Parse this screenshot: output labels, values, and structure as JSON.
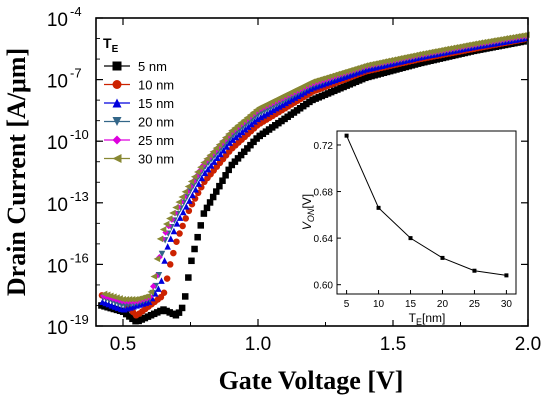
{
  "chart_data": [
    {
      "type": "scatter",
      "xlabel": "Gate Voltage [V]",
      "ylabel": "Drain Current [A/μm]",
      "xlim": [
        0.4,
        2.0
      ],
      "ylim_exponent": [
        -19,
        -4
      ],
      "yscale": "log",
      "x_ticks": [
        "0.5",
        "1.0",
        "1.5",
        "2.0"
      ],
      "y_tick_mantissa": "10",
      "y_tick_exponents": [
        "-4",
        "-7",
        "-10",
        "-13",
        "-16",
        "-19"
      ],
      "legend_title": "T",
      "legend_title_subscript": "E",
      "legend_position": "top-left",
      "series": [
        {
          "name": "5 nm",
          "color": "#000000",
          "marker": "square",
          "x": [
            0.42,
            0.5,
            0.55,
            0.6,
            0.65,
            0.7,
            0.725,
            0.75,
            0.8,
            0.9,
            1.0,
            1.2,
            1.4,
            1.6,
            1.8,
            2.0
          ],
          "y": [
            -18.0,
            -18.3,
            -18.8,
            -18.5,
            -18.2,
            -18.5,
            -18.0,
            -16.0,
            -13.5,
            -11.2,
            -9.8,
            -8.0,
            -6.9,
            -6.2,
            -5.6,
            -5.1
          ]
        },
        {
          "name": "10 nm",
          "color": "#cc2200",
          "marker": "circle",
          "x": [
            0.42,
            0.5,
            0.55,
            0.6,
            0.65,
            0.675,
            0.7,
            0.75,
            0.8,
            0.9,
            1.0,
            1.2,
            1.4,
            1.6,
            1.8,
            2.0
          ],
          "y": [
            -17.5,
            -17.8,
            -18.5,
            -18.0,
            -17.5,
            -16.0,
            -14.8,
            -13.2,
            -12.0,
            -10.4,
            -9.2,
            -7.6,
            -6.6,
            -6.0,
            -5.5,
            -5.0
          ]
        },
        {
          "name": "15 nm",
          "color": "#0000dd",
          "marker": "triangle-up",
          "x": [
            0.42,
            0.5,
            0.55,
            0.6,
            0.64,
            0.66,
            0.7,
            0.75,
            0.8,
            0.9,
            1.0,
            1.2,
            1.4,
            1.6,
            1.8,
            2.0
          ],
          "y": [
            -17.8,
            -18.2,
            -18.0,
            -17.8,
            -17.0,
            -15.3,
            -14.0,
            -12.8,
            -11.6,
            -10.0,
            -8.9,
            -7.4,
            -6.5,
            -5.9,
            -5.4,
            -4.95
          ]
        },
        {
          "name": "20 nm",
          "color": "#336688",
          "marker": "triangle-down",
          "x": [
            0.42,
            0.5,
            0.55,
            0.6,
            0.63,
            0.65,
            0.7,
            0.75,
            0.8,
            0.9,
            1.0,
            1.2,
            1.4,
            1.6,
            1.8,
            2.0
          ],
          "y": [
            -17.6,
            -18.0,
            -17.9,
            -17.7,
            -16.8,
            -15.0,
            -13.6,
            -12.4,
            -11.3,
            -9.8,
            -8.7,
            -7.3,
            -6.4,
            -5.85,
            -5.35,
            -4.9
          ]
        },
        {
          "name": "25 nm",
          "color": "#dd00dd",
          "marker": "diamond",
          "x": [
            0.42,
            0.5,
            0.55,
            0.6,
            0.625,
            0.645,
            0.7,
            0.75,
            0.8,
            0.9,
            1.0,
            1.2,
            1.4,
            1.6,
            1.8,
            2.0
          ],
          "y": [
            -17.5,
            -17.8,
            -17.8,
            -17.6,
            -16.5,
            -14.8,
            -13.3,
            -12.2,
            -11.1,
            -9.6,
            -8.5,
            -7.2,
            -6.35,
            -5.8,
            -5.3,
            -4.85
          ]
        },
        {
          "name": "30 nm",
          "color": "#888833",
          "marker": "triangle-left",
          "x": [
            0.42,
            0.5,
            0.55,
            0.6,
            0.62,
            0.64,
            0.7,
            0.75,
            0.8,
            0.9,
            1.0,
            1.2,
            1.4,
            1.6,
            1.8,
            2.0
          ],
          "y": [
            -17.4,
            -17.7,
            -17.7,
            -17.5,
            -16.2,
            -14.5,
            -13.1,
            -12.0,
            -11.0,
            -9.5,
            -8.4,
            -7.1,
            -6.3,
            -5.75,
            -5.25,
            -4.8
          ]
        }
      ]
    },
    {
      "type": "line",
      "xlabel": "T",
      "xlabel_subscript": "E",
      "xlabel_unit": "[nm]",
      "ylabel": "V",
      "ylabel_subscript": "ON",
      "ylabel_unit": "[V]",
      "xlim": [
        3.5,
        31.5
      ],
      "ylim": [
        0.592,
        0.732
      ],
      "x_ticks": [
        "5",
        "10",
        "15",
        "20",
        "25",
        "30"
      ],
      "y_ticks": [
        "0.60",
        "0.64",
        "0.68",
        "0.72"
      ],
      "series": [
        {
          "name": "",
          "color": "#000000",
          "marker": "square",
          "x": [
            5,
            10,
            15,
            20,
            25,
            30
          ],
          "y": [
            0.728,
            0.666,
            0.64,
            0.623,
            0.612,
            0.608
          ]
        }
      ]
    }
  ]
}
